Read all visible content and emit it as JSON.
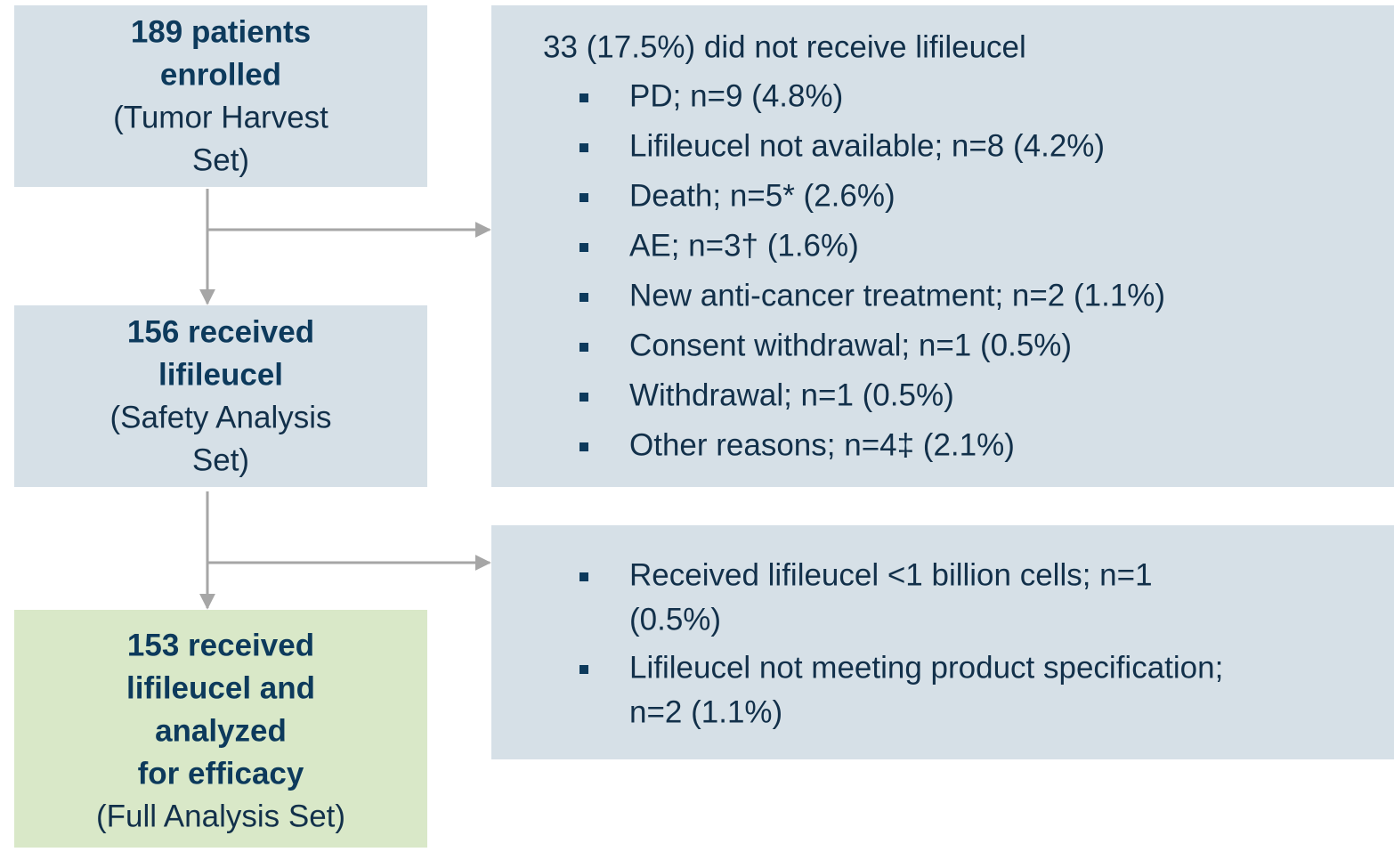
{
  "nodes": [
    {
      "bold_lines": [
        "189 patients",
        "enrolled"
      ],
      "note_lines": [
        "(Tumor Harvest",
        "Set)"
      ]
    },
    {
      "bold_lines": [
        "156 received",
        "lifileucel"
      ],
      "note_lines": [
        "(Safety Analysis",
        "Set)"
      ]
    },
    {
      "bold_lines": [
        "153 received",
        "lifileucel and",
        "analyzed",
        "for efficacy"
      ],
      "note_lines": [
        "(Full Analysis Set)"
      ]
    }
  ],
  "exclusions": [
    {
      "heading": "33 (17.5%) did not receive lifileucel",
      "items": [
        [
          "PD; n=9 (4.8%)"
        ],
        [
          "Lifileucel not available; n=8 (4.2%)"
        ],
        [
          "Death; n=5* (2.6%)"
        ],
        [
          "AE; n=3† (1.6%)"
        ],
        [
          "New anti-cancer treatment; n=2 (1.1%)"
        ],
        [
          "Consent withdrawal; n=1 (0.5%)"
        ],
        [
          "Withdrawal; n=1 (0.5%)"
        ],
        [
          "Other reasons; n=4‡ (2.1%)"
        ]
      ]
    },
    {
      "items": [
        [
          "Received lifileucel <1 billion cells; n=1",
          "(0.5%)"
        ],
        [
          "Lifileucel not meeting product specification;",
          "n=2 (1.1%)"
        ]
      ]
    }
  ]
}
